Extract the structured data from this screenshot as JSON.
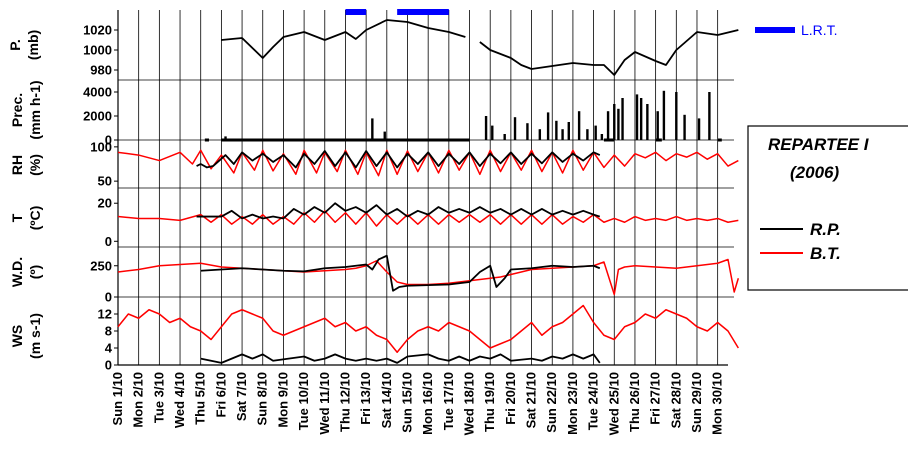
{
  "figure": {
    "legend_lrt": "L.R.T.",
    "legend_title_line1": "REPARTEE I",
    "legend_title_line2": "(2006)",
    "legend_series": [
      "R.P.",
      "B.T."
    ],
    "colors": {
      "rp": "#000000",
      "bt": "#ff0000",
      "lrt": "#0000ff"
    }
  },
  "chart_data": [
    {
      "type": "line",
      "panel": "pressure",
      "ylabel": "P. (mb)",
      "yticks": [
        "1020",
        "1000",
        "980"
      ],
      "ylim": [
        970,
        1040
      ],
      "series": [
        {
          "name": "",
          "color": "#000000",
          "x": [
            5.0,
            6.0,
            7.0,
            7.5,
            8.0,
            9.0,
            10.0,
            11.0,
            11.5,
            12.0,
            13.0,
            14.0,
            15.0,
            16.0,
            16.8
          ],
          "y": [
            1010,
            1012,
            992,
            1003,
            1013,
            1018,
            1010,
            1018,
            1011,
            1020,
            1030,
            1028,
            1022,
            1018,
            1013
          ]
        },
        {
          "name": "",
          "color": "#000000",
          "x": [
            17.5,
            18.0,
            19.0,
            19.5,
            20.0,
            21.0,
            22.0,
            23.0,
            23.5,
            24.0,
            24.5,
            25.0,
            26.0,
            26.5,
            27.0,
            28.0,
            29.0,
            30.0
          ],
          "y": [
            1008,
            1000,
            992,
            985,
            981,
            984,
            987,
            985,
            985,
            975,
            990,
            998,
            989,
            985,
            1000,
            1018,
            1015,
            1020
          ]
        }
      ],
      "lrt_periods": [
        [
          11.0,
          12.0
        ],
        [
          13.5,
          16.0
        ]
      ]
    },
    {
      "type": "bar",
      "panel": "precipitation",
      "ylabel": "Prec. (mm h-1)",
      "yticks": [
        "4000",
        "2000",
        "0"
      ],
      "ylim": [
        0,
        5000
      ],
      "baseline_runs": [
        [
          4.2,
          4.4
        ],
        [
          5.0,
          17.0
        ],
        [
          23.5,
          24.0
        ],
        [
          26.0,
          26.3
        ],
        [
          29.0,
          29.2
        ]
      ],
      "x": [
        5.2,
        12.3,
        12.9,
        17.8,
        18.1,
        18.7,
        19.2,
        19.8,
        20.4,
        20.8,
        21.2,
        21.5,
        21.8,
        22.3,
        22.7,
        23.1,
        23.4,
        23.7,
        24.0,
        24.2,
        24.4,
        25.1,
        25.3,
        25.6,
        26.1,
        26.4,
        27.0,
        27.4,
        28.1,
        28.6
      ],
      "values": [
        300,
        1800,
        700,
        2000,
        1200,
        500,
        1900,
        1400,
        900,
        2300,
        1600,
        900,
        1500,
        2400,
        900,
        1200,
        500,
        2400,
        3000,
        2600,
        3500,
        3800,
        3500,
        3000,
        2400,
        4100,
        4000,
        2100,
        1800,
        4000
      ]
    },
    {
      "type": "line",
      "panel": "rh",
      "ylabel": "RH (%)",
      "yticks": [
        "100",
        "50"
      ],
      "ylim": [
        40,
        110
      ],
      "series": [
        {
          "name": "B.T.",
          "color": "#ff0000",
          "x": [
            0,
            1,
            2,
            3,
            3.6,
            4,
            4.5,
            5,
            5.6,
            6,
            6.6,
            7,
            7.5,
            8,
            8.6,
            9,
            9.6,
            10,
            10.6,
            11,
            11.6,
            12,
            12.6,
            13,
            13.5,
            14,
            14.5,
            15,
            15.5,
            16,
            16.5,
            17,
            17.5,
            18,
            18.5,
            19,
            19.5,
            20,
            20.5,
            21,
            21.5,
            22,
            22.5,
            23,
            23.5,
            24,
            24.5,
            25,
            25.5,
            26,
            26.5,
            27,
            27.5,
            28,
            28.5,
            29,
            29.5,
            30
          ],
          "y": [
            92,
            88,
            80,
            92,
            75,
            95,
            68,
            88,
            62,
            92,
            66,
            95,
            65,
            90,
            60,
            95,
            62,
            92,
            64,
            95,
            60,
            92,
            58,
            95,
            60,
            94,
            64,
            92,
            62,
            95,
            66,
            92,
            60,
            95,
            64,
            92,
            66,
            95,
            64,
            92,
            62,
            95,
            66,
            92,
            70,
            88,
            72,
            90,
            84,
            92,
            80,
            90,
            85,
            92,
            82,
            90,
            72,
            80
          ]
        },
        {
          "name": "R.P.",
          "color": "#000000",
          "x": [
            3.8,
            4.0,
            4.3,
            4.6,
            5.2,
            5.6,
            6.0,
            6.5,
            7.0,
            7.5,
            8.0,
            8.6,
            9.0,
            9.5,
            10.0,
            10.5,
            11.0,
            11.5,
            12.0,
            12.5,
            13.0,
            13.5,
            14.0,
            14.5,
            15.0,
            15.5,
            16.0,
            16.5,
            17.0,
            17.5,
            18.0,
            18.5,
            19.0,
            19.5,
            20.0,
            20.5,
            21.0,
            21.5,
            22.0,
            22.5,
            23.0,
            23.3
          ],
          "y": [
            72,
            75,
            70,
            72,
            88,
            75,
            92,
            80,
            90,
            78,
            88,
            70,
            90,
            75,
            94,
            72,
            92,
            70,
            94,
            72,
            92,
            70,
            90,
            75,
            92,
            72,
            90,
            75,
            92,
            72,
            90,
            76,
            92,
            75,
            90,
            76,
            92,
            78,
            90,
            80,
            92,
            88
          ]
        }
      ]
    },
    {
      "type": "line",
      "panel": "temperature",
      "ylabel": "T (ºC)",
      "yticks": [
        "20",
        "0"
      ],
      "ylim": [
        -3,
        28
      ],
      "series": [
        {
          "name": "B.T.",
          "color": "#ff0000",
          "x": [
            0,
            1,
            2,
            3,
            4,
            4.5,
            5,
            5.5,
            6,
            6.5,
            7,
            7.5,
            8,
            8.5,
            9,
            9.5,
            10,
            10.5,
            11,
            11.5,
            12,
            12.5,
            13,
            13.5,
            14,
            14.5,
            15,
            15.5,
            16,
            16.5,
            17,
            17.5,
            18,
            18.5,
            19,
            19.5,
            20,
            20.5,
            21,
            21.5,
            22,
            22.5,
            23,
            23.5,
            24,
            24.5,
            25,
            25.5,
            26,
            26.5,
            27,
            27.5,
            28,
            28.5,
            29,
            29.5,
            30
          ],
          "y": [
            13,
            12,
            12,
            11,
            14,
            10,
            14,
            9,
            13,
            9,
            14,
            9,
            13,
            9,
            15,
            10,
            16,
            10,
            15,
            9,
            15,
            8,
            14,
            9,
            14,
            9,
            14,
            9,
            14,
            10,
            14,
            10,
            14,
            9,
            14,
            9,
            14,
            9,
            14,
            9,
            13,
            10,
            14,
            10,
            12,
            10,
            13,
            11,
            12,
            11,
            13,
            11,
            12,
            11,
            12,
            10,
            11
          ]
        },
        {
          "name": "R.P.",
          "color": "#000000",
          "x": [
            3.8,
            5.0,
            5.5,
            6.0,
            6.5,
            7.0,
            7.5,
            8.0,
            8.5,
            9.0,
            9.5,
            10.0,
            10.5,
            11.0,
            11.5,
            12.0,
            12.5,
            13.0,
            13.5,
            14.0,
            14.5,
            15.0,
            15.5,
            16.0,
            16.5,
            17.0,
            17.5,
            18.0,
            18.5,
            19.0,
            19.5,
            20.0,
            20.5,
            21.0,
            21.5,
            22.0,
            22.5,
            23.0,
            23.3
          ],
          "y": [
            13,
            13,
            16,
            12,
            14,
            12,
            13,
            12,
            17,
            14,
            18,
            15,
            20,
            16,
            18,
            15,
            19,
            14,
            17,
            13,
            16,
            14,
            18,
            15,
            17,
            15,
            18,
            15,
            17,
            14,
            17,
            14,
            17,
            14,
            16,
            14,
            16,
            14,
            13
          ]
        }
      ]
    },
    {
      "type": "line",
      "panel": "wind_direction",
      "ylabel": "W.D. (º)",
      "yticks": [
        "250",
        "0"
      ],
      "ylim": [
        0,
        400
      ],
      "series": [
        {
          "name": "B.T.",
          "color": "#ff0000",
          "x": [
            0,
            1,
            2,
            3,
            4,
            5,
            6,
            7,
            8,
            9,
            10,
            10.5,
            11,
            11.5,
            12,
            12.5,
            13,
            13.5,
            14,
            15,
            16,
            17,
            18,
            18.5,
            19,
            20,
            21,
            22,
            23,
            23.5,
            24,
            24.2,
            24.5,
            25,
            26,
            27,
            28,
            29,
            29.5,
            29.8,
            30
          ],
          "y": [
            200,
            220,
            250,
            260,
            270,
            240,
            230,
            220,
            210,
            200,
            210,
            215,
            220,
            230,
            250,
            290,
            200,
            120,
            100,
            100,
            110,
            130,
            150,
            160,
            180,
            220,
            230,
            240,
            250,
            280,
            20,
            220,
            240,
            250,
            240,
            230,
            250,
            270,
            300,
            40,
            150
          ]
        },
        {
          "name": "R.P.",
          "color": "#000000",
          "x": [
            4.0,
            5.0,
            6.0,
            7.0,
            8.0,
            9.0,
            10.0,
            11.0,
            11.5,
            12.0,
            12.3,
            12.6,
            13.0,
            13.3,
            13.6,
            14.0,
            15.0,
            16.0,
            17.0,
            17.5,
            18.0,
            18.3,
            18.7,
            19.0,
            20.0,
            21.0,
            22.0,
            23.0,
            23.3
          ],
          "y": [
            210,
            220,
            230,
            220,
            210,
            205,
            230,
            240,
            250,
            260,
            220,
            300,
            330,
            50,
            80,
            90,
            95,
            100,
            120,
            200,
            250,
            80,
            150,
            220,
            230,
            250,
            240,
            250,
            230
          ]
        }
      ]
    },
    {
      "type": "line",
      "panel": "wind_speed",
      "ylabel": "WS (m s-1)",
      "yticks": [
        "12",
        "8",
        "4",
        "0"
      ],
      "ylim": [
        0,
        16
      ],
      "series": [
        {
          "name": "B.T.",
          "color": "#ff0000",
          "x": [
            0,
            0.5,
            1,
            1.5,
            2,
            2.5,
            3,
            3.5,
            4,
            4.5,
            5,
            5.5,
            6,
            6.5,
            7,
            7.5,
            8,
            8.5,
            9,
            9.5,
            10,
            10.5,
            11,
            11.5,
            12,
            12.5,
            13,
            13.5,
            14,
            14.5,
            15,
            15.5,
            16,
            16.5,
            17,
            17.5,
            18,
            18.5,
            19,
            19.5,
            20,
            20.5,
            21,
            21.5,
            22,
            22.5,
            23,
            23.5,
            24,
            24.5,
            25,
            25.5,
            26,
            26.5,
            27,
            27.5,
            28,
            28.5,
            29,
            29.5,
            30
          ],
          "y": [
            9,
            12,
            11,
            13,
            12,
            10,
            11,
            9,
            8,
            6,
            9,
            12,
            13,
            12,
            11,
            8,
            7,
            8,
            9,
            10,
            11,
            9,
            10,
            8,
            9,
            7,
            6,
            3,
            6,
            8,
            9,
            8,
            10,
            9,
            8,
            6,
            4,
            5,
            6,
            8,
            10,
            7,
            9,
            10,
            12,
            14,
            10,
            7,
            6,
            9,
            10,
            12,
            11,
            13,
            12,
            11,
            9,
            8,
            10,
            8,
            4
          ]
        },
        {
          "name": "R.P.",
          "color": "#000000",
          "x": [
            4.0,
            5.0,
            5.5,
            6.0,
            6.5,
            7.0,
            7.5,
            9.0,
            9.5,
            10.0,
            10.5,
            11.0,
            11.5,
            12.0,
            12.5,
            13.0,
            13.5,
            14.0,
            15.0,
            15.5,
            16.0,
            16.5,
            17.0,
            17.5,
            18.0,
            18.5,
            19.0,
            20.0,
            20.5,
            21.0,
            21.5,
            22.0,
            22.5,
            23.0,
            23.3
          ],
          "y": [
            1.5,
            0.5,
            1.5,
            2.5,
            1.5,
            2.5,
            1.0,
            2.0,
            1.0,
            1.5,
            2.5,
            1.5,
            1.0,
            1.5,
            1.0,
            1.5,
            0.5,
            2.0,
            2.5,
            1.5,
            1.0,
            2.0,
            1.0,
            2.0,
            1.5,
            2.5,
            1.0,
            1.5,
            1.0,
            2.0,
            1.5,
            2.5,
            1.5,
            2.5,
            0.5
          ]
        }
      ]
    }
  ],
  "x_axis": {
    "dates": [
      "Sun 1/10",
      "Mon 2/10",
      "Tue 3/10",
      "Wed 4/10",
      "Thu 5/10",
      "Fri 6/10",
      "Sat 7/10",
      "Sun 8/10",
      "Mon 9/10",
      "Tue 10/10",
      "Wed 11/10",
      "Thu 12/10",
      "Fri 13/10",
      "Sat 14/10",
      "Sun 15/10",
      "Mon 16/10",
      "Tue 17/10",
      "Wed 18/10",
      "Thu 19/10",
      "Fri 20/10",
      "Sat 21/10",
      "Sun 22/10",
      "Mon 23/10",
      "Tue 24/10",
      "Wed 25/10",
      "Thu 26/10",
      "Fri 27/10",
      "Sat 28/10",
      "Sun 29/10",
      "Mon 30/10"
    ]
  }
}
